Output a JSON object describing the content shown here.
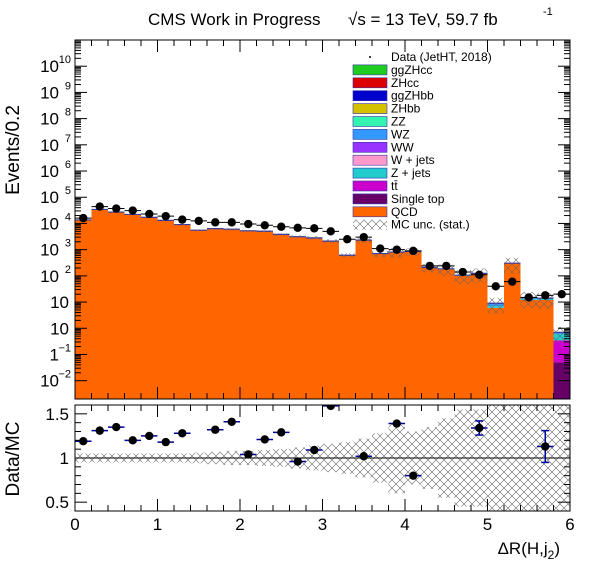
{
  "header": {
    "title": "CMS Work in Progress",
    "energy": "√s = 13 TeV, 59.7 fb",
    "energy_exp": "-1"
  },
  "top_panel": {
    "ylabel": "Events/0.2",
    "log_ytick_labels": [
      "10",
      "1",
      "10",
      "10",
      "10",
      "10",
      "10",
      "10",
      "10",
      "10",
      "10",
      "10",
      "10"
    ]
  },
  "ratio_panel": {
    "ylabel": "Data/MC",
    "xlabel": "ΔR(H,j",
    "xlabel_sub": "2",
    "xlabel_close": ")"
  },
  "legend": [
    {
      "label": "Data (JetHT, 2018)",
      "kind": "data",
      "color": "#000000"
    },
    {
      "label": "ggZHcc",
      "kind": "fill",
      "color": "#1fcc1f"
    },
    {
      "label": "ZHcc",
      "kind": "fill",
      "color": "#dd0000"
    },
    {
      "label": "ggZHbb",
      "kind": "fill",
      "color": "#0000cc"
    },
    {
      "label": "ZHbb",
      "kind": "fill",
      "color": "#d4c200"
    },
    {
      "label": "ZZ",
      "kind": "fill",
      "color": "#33f5b0"
    },
    {
      "label": "WZ",
      "kind": "fill",
      "color": "#3399ff"
    },
    {
      "label": "WW",
      "kind": "fill",
      "color": "#9933ff"
    },
    {
      "label": "W + jets",
      "kind": "fill",
      "color": "#ff99cc"
    },
    {
      "label": "Z + jets",
      "kind": "fill",
      "color": "#22cccc"
    },
    {
      "label": "tt̄",
      "kind": "fill",
      "color": "#cc00cc"
    },
    {
      "label": "Single top",
      "kind": "fill",
      "color": "#660066"
    },
    {
      "label": "QCD",
      "kind": "fill",
      "color": "#ff6600"
    },
    {
      "label": "MC unc. (stat.)",
      "kind": "hatch",
      "color": "#555555"
    }
  ],
  "chart_data": [
    {
      "type": "bar",
      "title": "CMS Work in Progress",
      "ylabel": "Events/0.2",
      "yscale": "log",
      "ylim": [
        0.002,
        100000000000
      ],
      "xlim": [
        0,
        6
      ],
      "bin_width": 0.2,
      "x": [
        0.1,
        0.3,
        0.5,
        0.7,
        0.9,
        1.1,
        1.3,
        1.5,
        1.7,
        1.9,
        2.1,
        2.3,
        2.5,
        2.7,
        2.9,
        3.1,
        3.3,
        3.5,
        3.7,
        3.9,
        4.1,
        4.3,
        4.5,
        4.7,
        4.9,
        5.1,
        5.3,
        5.5,
        5.7,
        5.9
      ],
      "series": [
        {
          "name": "QCD",
          "color": "#ff6600",
          "values": [
            13500,
            34000,
            27000,
            22000,
            17000,
            13000,
            9000,
            5500,
            6300,
            6000,
            5200,
            5000,
            3800,
            3100,
            2800,
            2100,
            600,
            2300,
            700,
            800,
            850,
            200,
            180,
            100,
            120,
            6,
            300,
            12,
            12,
            0
          ]
        },
        {
          "name": "Single top",
          "color": "#660066",
          "values": [
            0,
            0,
            0,
            0,
            0,
            0,
            0,
            0,
            0,
            0,
            0,
            0,
            0,
            0,
            0,
            0,
            0,
            0,
            0,
            0,
            0,
            0,
            0,
            0,
            0,
            0,
            0,
            0,
            0,
            0.05
          ]
        },
        {
          "name": "tt̄",
          "color": "#cc00cc",
          "values": [
            0,
            0,
            0,
            0,
            0,
            0,
            0,
            0,
            0,
            0,
            0,
            0,
            0,
            0,
            0,
            0,
            0,
            0,
            0,
            0,
            0,
            0,
            0,
            0,
            0,
            0,
            0,
            0,
            0,
            0.3
          ]
        },
        {
          "name": "Z + jets",
          "color": "#22cccc",
          "values": [
            50,
            80,
            60,
            50,
            40,
            30,
            25,
            20,
            20,
            18,
            15,
            14,
            12,
            10,
            9,
            8,
            6,
            6,
            5,
            5,
            4,
            4,
            3,
            3,
            2,
            1,
            2,
            1,
            1,
            0.25
          ]
        },
        {
          "name": "WZ",
          "color": "#3399ff",
          "values": [
            60,
            100,
            80,
            60,
            50,
            40,
            30,
            20,
            20,
            18,
            16,
            14,
            12,
            10,
            9,
            8,
            6,
            6,
            5,
            5,
            4,
            4,
            3,
            3,
            2,
            2,
            2,
            2,
            1,
            0.1
          ]
        }
      ],
      "data_points": {
        "name": "Data (JetHT, 2018)",
        "values": [
          16000,
          44000,
          37000,
          31000,
          23000,
          19000,
          14000,
          12500,
          11000,
          11000,
          9500,
          8500,
          7500,
          6800,
          6500,
          5000,
          2500,
          3000,
          1100,
          1000,
          900,
          240,
          240,
          140,
          110,
          40,
          60,
          15,
          18,
          20
        ]
      }
    },
    {
      "type": "scatter",
      "ylabel": "Data/MC",
      "xlabel": "ΔR(H,j2)",
      "ylim": [
        0.4,
        1.6
      ],
      "xlim": [
        0,
        6
      ],
      "yticks": [
        0.5,
        1,
        1.5
      ],
      "xticks": [
        0,
        1,
        2,
        3,
        4,
        5,
        6
      ],
      "x": [
        0.1,
        0.3,
        0.5,
        0.7,
        0.9,
        1.1,
        1.3,
        1.7,
        1.9,
        2.1,
        2.3,
        2.5,
        2.7,
        2.9,
        3.1,
        3.5,
        3.9,
        4.1,
        4.9,
        5.7
      ],
      "ratio": [
        1.19,
        1.31,
        1.35,
        1.2,
        1.25,
        1.18,
        1.28,
        1.32,
        1.41,
        1.04,
        1.21,
        1.29,
        0.96,
        1.09,
        1.59,
        1.02,
        1.39,
        0.8,
        1.34,
        1.13
      ],
      "err": [
        0.02,
        0.02,
        0.02,
        0.02,
        0.02,
        0.02,
        0.02,
        0.02,
        0.02,
        0.02,
        0.02,
        0.02,
        0.03,
        0.03,
        0.02,
        0.04,
        0.03,
        0.04,
        0.08,
        0.18
      ],
      "mc_unc_half_width": [
        0.05,
        0.05,
        0.05,
        0.05,
        0.05,
        0.05,
        0.05,
        0.06,
        0.07,
        0.08,
        0.08,
        0.09,
        0.1,
        0.12,
        0.14,
        0.16,
        0.18,
        0.22,
        0.28,
        0.4,
        0.3,
        0.35,
        0.45,
        0.55,
        0.55,
        0.6,
        0.6,
        0.6,
        0.6,
        0.6
      ],
      "reference_line": 1
    }
  ]
}
